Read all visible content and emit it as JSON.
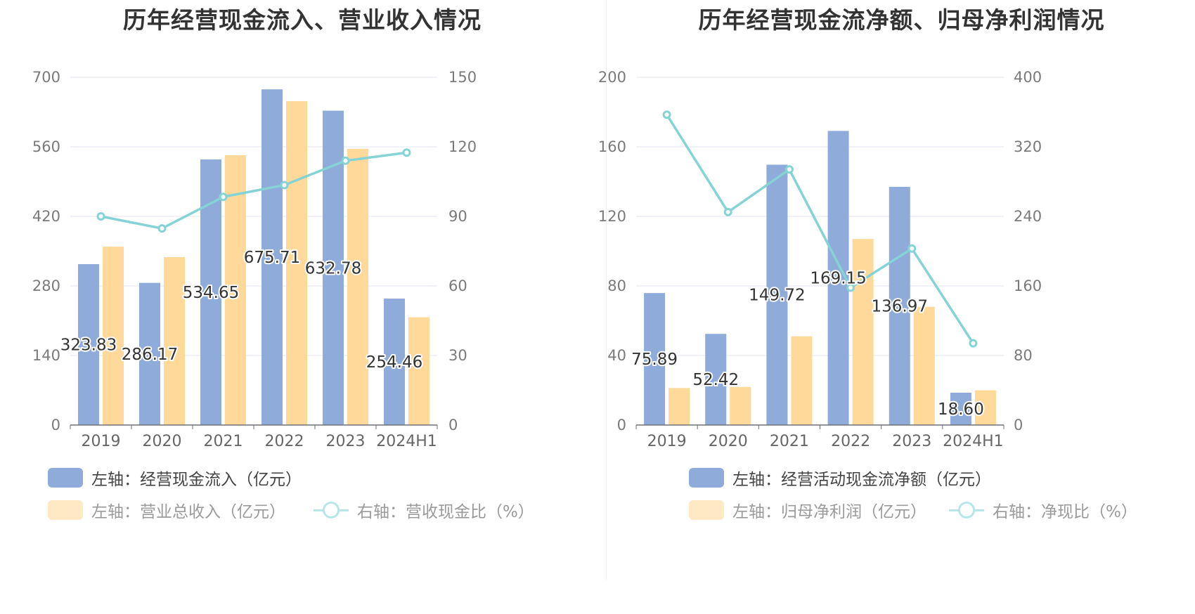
{
  "colors": {
    "blue": "#8eabd9",
    "orange": "#ffd999",
    "teal": "#85d3d5",
    "orange_dim": "#ffe8c4",
    "teal_dim": "#b7e6e7",
    "grid": "#e0e6f1",
    "axis": "#6e7079"
  },
  "chart_data": [
    {
      "type": "bar",
      "title": "历年经营现金流入、营业收入情况",
      "categories": [
        "2019",
        "2020",
        "2021",
        "2022",
        "2023",
        "2024H1"
      ],
      "left_axis": {
        "min": 0,
        "max": 700,
        "ticks": [
          "0",
          "140",
          "280",
          "420",
          "560",
          "700"
        ]
      },
      "right_axis": {
        "min": 0,
        "max": 150,
        "ticks": [
          "0",
          "30",
          "60",
          "90",
          "120",
          "150"
        ]
      },
      "series": [
        {
          "name": "左轴：经营现金流入（亿元）",
          "type": "bar",
          "axis": "left",
          "color": "#8eabd9",
          "values": [
            323.83,
            286.17,
            534.65,
            675.71,
            632.78,
            254.46
          ],
          "labels": [
            "323.83",
            "286.17",
            "534.65",
            "675.71",
            "632.78",
            "254.46"
          ]
        },
        {
          "name": "左轴：营业总收入（亿元）",
          "type": "bar",
          "axis": "left",
          "color": "#ffd999",
          "values": [
            359,
            338,
            543,
            652,
            556,
            217
          ]
        },
        {
          "name": "右轴：营收现金比（%）",
          "type": "line",
          "axis": "right",
          "color": "#85d3d5",
          "values": [
            90.0,
            84.8,
            98.4,
            103.5,
            114.0,
            117.5
          ]
        }
      ]
    },
    {
      "type": "bar",
      "title": "历年经营现金流净额、归母净利润情况",
      "categories": [
        "2019",
        "2020",
        "2021",
        "2022",
        "2023",
        "2024H1"
      ],
      "left_axis": {
        "min": 0,
        "max": 200,
        "ticks": [
          "0",
          "40",
          "80",
          "120",
          "160",
          "200"
        ]
      },
      "right_axis": {
        "min": 0,
        "max": 400,
        "ticks": [
          "0",
          "80",
          "160",
          "240",
          "320",
          "400"
        ]
      },
      "series": [
        {
          "name": "左轴：经营活动现金流净额（亿元）",
          "type": "bar",
          "axis": "left",
          "color": "#8eabd9",
          "values": [
            75.89,
            52.42,
            149.72,
            169.15,
            136.97,
            18.6
          ],
          "labels": [
            "75.89",
            "52.42",
            "149.72",
            "169.15",
            "136.97",
            "18.60"
          ]
        },
        {
          "name": "左轴：归母净利润（亿元）",
          "type": "bar",
          "axis": "left",
          "color": "#ffd999",
          "values": [
            21.3,
            21.9,
            51.0,
            107.0,
            68.0,
            20.0
          ]
        },
        {
          "name": "右轴：净现比（%）",
          "type": "line",
          "axis": "right",
          "color": "#85d3d5",
          "values": [
            357,
            245,
            294,
            158,
            203,
            94
          ]
        }
      ]
    }
  ]
}
